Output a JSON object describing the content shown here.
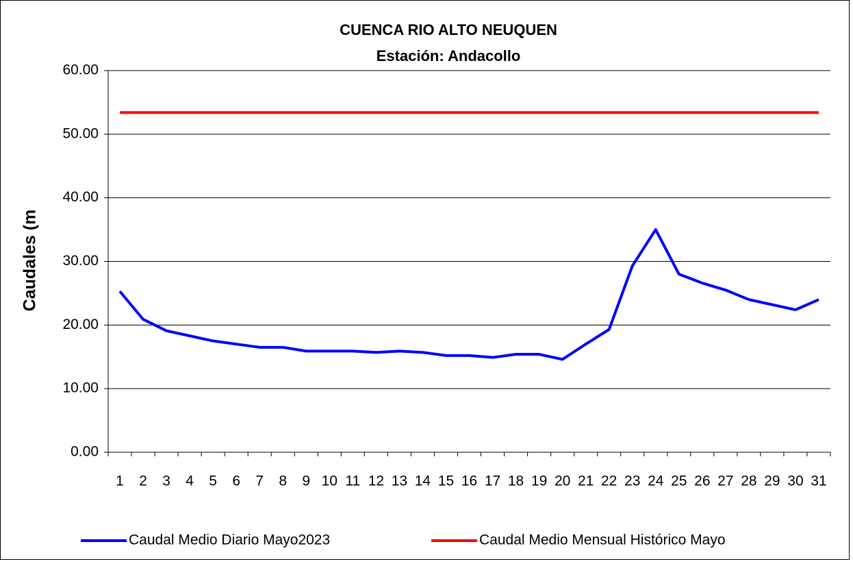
{
  "chart_data": {
    "type": "line",
    "title": "CUENCA RIO ALTO NEUQUEN",
    "subtitle": "Estación: Andacollo",
    "y_label": "Caudales (m",
    "categories": [
      "1",
      "2",
      "3",
      "4",
      "5",
      "6",
      "7",
      "8",
      "9",
      "10",
      "11",
      "12",
      "13",
      "14",
      "15",
      "16",
      "17",
      "18",
      "19",
      "20",
      "21",
      "22",
      "23",
      "24",
      "25",
      "26",
      "27",
      "28",
      "29",
      "30",
      "31"
    ],
    "series": [
      {
        "name": "Caudal Medio Diario Mayo2023",
        "color": "#0000ff",
        "values": [
          25.3,
          20.9,
          19.1,
          18.3,
          17.5,
          17.0,
          16.5,
          16.5,
          15.9,
          15.9,
          15.9,
          15.7,
          15.9,
          15.7,
          15.2,
          15.2,
          14.9,
          15.4,
          15.4,
          14.6,
          17.0,
          19.3,
          29.3,
          35.0,
          28.0,
          26.6,
          25.5,
          24.0,
          23.2,
          22.4,
          24.0
        ]
      },
      {
        "name": "Caudal Medio Mensual Histórico Mayo",
        "color": "#ff0000",
        "values": [
          53.4,
          53.4,
          53.4,
          53.4,
          53.4,
          53.4,
          53.4,
          53.4,
          53.4,
          53.4,
          53.4,
          53.4,
          53.4,
          53.4,
          53.4,
          53.4,
          53.4,
          53.4,
          53.4,
          53.4,
          53.4,
          53.4,
          53.4,
          53.4,
          53.4,
          53.4,
          53.4,
          53.4,
          53.4,
          53.4,
          53.4
        ]
      }
    ],
    "ylim": [
      0,
      60
    ],
    "yticks": [
      {
        "value": 0,
        "label": "0.00"
      },
      {
        "value": 10,
        "label": "10.00"
      },
      {
        "value": 20,
        "label": "20.00"
      },
      {
        "value": 30,
        "label": "30.00"
      },
      {
        "value": 40,
        "label": "40.00"
      },
      {
        "value": 50,
        "label": "50.00"
      },
      {
        "value": 60,
        "label": "60.00"
      }
    ],
    "grid": true,
    "legend": "bottom"
  }
}
